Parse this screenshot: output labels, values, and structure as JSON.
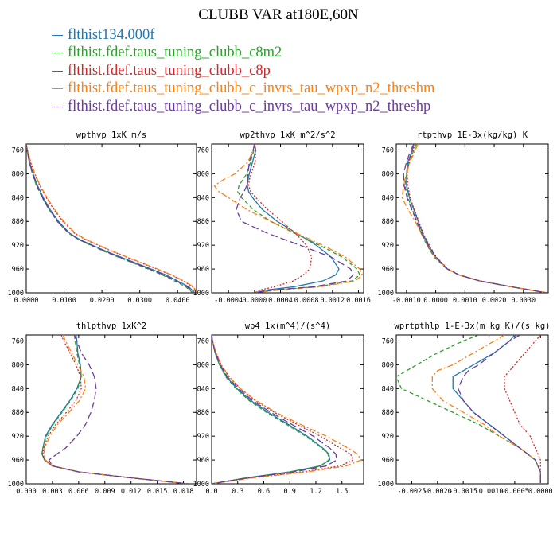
{
  "title": "CLUBB VAR at180E,60N",
  "legend": [
    {
      "label": "flthist134.000f",
      "color": "#1f77b4"
    },
    {
      "label": "flthist.fdef.taus_tuning_clubb_c8m2",
      "color": "#2ca02c"
    },
    {
      "label": "flthist.fdef.taus_tuning_clubb_c8p",
      "color": "#d62728"
    },
    {
      "label": "flthist.fdef.taus_tuning_clubb_c_invrs_tau_wpxp_n2_threshm",
      "color": "#ff7f0e"
    },
    {
      "label": "flthist.fdef.taus_tuning_clubb_c_invrs_tau_wpxp_n2_threshp",
      "color": "#6a3d9a"
    }
  ],
  "chart_data": [
    {
      "type": "line",
      "title": "wpthvp  1xK m/s",
      "xlim": [
        0.0,
        0.045
      ],
      "ylim": [
        1000,
        750
      ],
      "x_ticks": [
        "0.0000",
        "0.0100",
        "0.0200",
        "0.0300",
        "0.0400"
      ],
      "y_ticks": [
        "760",
        "800",
        "840",
        "880",
        "920",
        "960",
        "1000"
      ],
      "y": [
        750,
        760,
        780,
        800,
        820,
        840,
        860,
        880,
        900,
        910,
        920,
        930,
        940,
        950,
        960,
        970,
        980,
        990,
        1000
      ],
      "series": [
        {
          "color": "#1f77b4",
          "dash": "solid",
          "values": [
            0.0,
            0.0002,
            0.0009,
            0.0018,
            0.003,
            0.0045,
            0.0063,
            0.0085,
            0.0115,
            0.014,
            0.0175,
            0.021,
            0.025,
            0.029,
            0.033,
            0.037,
            0.04,
            0.043,
            0.0445
          ]
        },
        {
          "color": "#2ca02c",
          "dash": "dashed",
          "values": [
            0.0,
            0.0002,
            0.0008,
            0.0016,
            0.0027,
            0.0042,
            0.006,
            0.0082,
            0.0112,
            0.0137,
            0.017,
            0.0205,
            0.0243,
            0.0283,
            0.0322,
            0.036,
            0.0392,
            0.0422,
            0.044
          ]
        },
        {
          "color": "#d62728",
          "dash": "dotted",
          "values": [
            0.0,
            0.0003,
            0.0011,
            0.0022,
            0.0036,
            0.0053,
            0.0073,
            0.0097,
            0.0128,
            0.0155,
            0.019,
            0.0226,
            0.0265,
            0.0305,
            0.0345,
            0.0383,
            0.0415,
            0.044,
            0.0452
          ]
        },
        {
          "color": "#ff7f0e",
          "dash": "dashdot",
          "values": [
            0.0,
            0.0003,
            0.0012,
            0.0023,
            0.0037,
            0.0055,
            0.0075,
            0.0099,
            0.013,
            0.0157,
            0.0192,
            0.0228,
            0.0267,
            0.0307,
            0.0347,
            0.0385,
            0.0417,
            0.0442,
            0.0452
          ]
        },
        {
          "color": "#6a3d9a",
          "dash": "longdash",
          "values": [
            0.0,
            0.0002,
            0.0008,
            0.0017,
            0.0028,
            0.0043,
            0.0061,
            0.0083,
            0.0113,
            0.0138,
            0.0172,
            0.0207,
            0.0246,
            0.0286,
            0.0326,
            0.0364,
            0.0396,
            0.0426,
            0.0442
          ]
        }
      ]
    },
    {
      "type": "line",
      "title": "wp2thvp  1xK m^2/s^2",
      "xlim": [
        -0.00066,
        0.00168
      ],
      "ylim": [
        1000,
        750
      ],
      "x_ticks": [
        "-0.0004",
        "0.0000",
        "0.0004",
        "0.0008",
        "0.0012",
        "0.0016"
      ],
      "y_ticks": [
        "760",
        "800",
        "840",
        "880",
        "920",
        "960",
        "1000"
      ],
      "y": [
        750,
        760,
        780,
        800,
        810,
        820,
        830,
        840,
        860,
        880,
        900,
        920,
        940,
        960,
        970,
        980,
        990,
        995,
        1000
      ],
      "series": [
        {
          "color": "#1f77b4",
          "dash": "solid",
          "values": [
            0.0,
            2e-05,
            -3e-05,
            -8e-05,
            -0.0001,
            -0.00011,
            -9e-05,
            -3e-05,
            0.00012,
            0.00035,
            0.00065,
            0.00095,
            0.00118,
            0.0013,
            0.00125,
            0.00105,
            0.0006,
            0.0002,
            0.0
          ]
        },
        {
          "color": "#2ca02c",
          "dash": "dashed",
          "values": [
            0.0,
            -1e-05,
            -6e-05,
            -0.00012,
            -0.00018,
            -0.00024,
            -0.00026,
            -0.0002,
            -2e-05,
            0.00025,
            0.00062,
            0.001,
            0.00135,
            0.00158,
            0.00162,
            0.0015,
            0.00095,
            0.00035,
            0.0
          ]
        },
        {
          "color": "#d62728",
          "dash": "dotted",
          "values": [
            0.0,
            2e-05,
            1e-05,
            -5e-05,
            -8e-05,
            -9e-05,
            -6e-05,
            2e-05,
            0.0002,
            0.00042,
            0.00063,
            0.0008,
            0.00088,
            0.00085,
            0.00075,
            0.0006,
            0.0003,
            0.0001,
            0.0
          ]
        },
        {
          "color": "#ff7f0e",
          "dash": "dashdot",
          "values": [
            0.0,
            -2e-05,
            -0.0001,
            -0.0003,
            -0.00048,
            -0.00062,
            -0.00055,
            -0.0004,
            -0.00012,
            0.00025,
            0.00065,
            0.00105,
            0.0014,
            0.00162,
            0.00166,
            0.00155,
            0.001,
            0.0004,
            0.0
          ]
        },
        {
          "color": "#6a3d9a",
          "dash": "longdash",
          "values": [
            0.0,
            -2e-05,
            -8e-05,
            -0.0001,
            -0.0001,
            -0.00012,
            -0.00016,
            -0.00022,
            -0.00028,
            -0.0002,
            0.0002,
            0.0007,
            0.00118,
            0.00148,
            0.00152,
            0.00142,
            0.0009,
            0.0003,
            0.0
          ]
        }
      ]
    },
    {
      "type": "line",
      "title": "rtpthvp  1E-3x(kg/kg) K",
      "xlim": [
        -0.00135,
        0.00385
      ],
      "ylim": [
        1000,
        750
      ],
      "x_ticks": [
        "-0.0010",
        "0.0000",
        "0.0010",
        "0.0020",
        "0.0030"
      ],
      "y_ticks": [
        "760",
        "800",
        "840",
        "880",
        "920",
        "960",
        "1000"
      ],
      "y": [
        750,
        760,
        780,
        800,
        820,
        840,
        860,
        880,
        900,
        920,
        940,
        960,
        970,
        980,
        990,
        1000
      ],
      "series": [
        {
          "color": "#1f77b4",
          "dash": "solid",
          "values": [
            -0.00075,
            -0.0008,
            -0.00095,
            -0.001,
            -0.001,
            -0.0009,
            -0.00075,
            -0.0006,
            -0.00045,
            -0.00025,
            0.0,
            0.0004,
            0.0008,
            0.0015,
            0.0026,
            0.0038
          ]
        },
        {
          "color": "#2ca02c",
          "dash": "dashed",
          "values": [
            -0.00065,
            -0.00075,
            -0.0009,
            -0.001,
            -0.00105,
            -0.00095,
            -0.0008,
            -0.00065,
            -0.0005,
            -0.0003,
            -5e-05,
            0.00038,
            0.0008,
            0.0015,
            0.0026,
            0.0038
          ]
        },
        {
          "color": "#d62728",
          "dash": "dotted",
          "values": [
            -0.0007,
            -0.00078,
            -0.00092,
            -0.00098,
            -0.00095,
            -0.00088,
            -0.00073,
            -0.00058,
            -0.00043,
            -0.00022,
            2e-05,
            0.00042,
            0.00082,
            0.00152,
            0.00262,
            0.0038
          ]
        },
        {
          "color": "#ff7f0e",
          "dash": "dashdot",
          "values": [
            -0.0006,
            -0.0007,
            -0.00088,
            -0.001,
            -0.0011,
            -0.00115,
            -0.00095,
            -0.0007,
            -0.0005,
            -0.00028,
            -2e-05,
            0.0004,
            0.00082,
            0.00152,
            0.00262,
            0.0038
          ]
        },
        {
          "color": "#6a3d9a",
          "dash": "longdash",
          "values": [
            -0.00075,
            -0.00085,
            -0.001,
            -0.0011,
            -0.00108,
            -0.00098,
            -0.00082,
            -0.00065,
            -0.00048,
            -0.00026,
            0.0,
            0.0004,
            0.0008,
            0.0015,
            0.0026,
            0.0038
          ]
        }
      ]
    },
    {
      "type": "line",
      "title": "thlpthvp  1xK^2",
      "xlim": [
        0.0,
        0.0195
      ],
      "ylim": [
        1000,
        750
      ],
      "x_ticks": [
        "0.000",
        "0.003",
        "0.006",
        "0.009",
        "0.012",
        "0.015",
        "0.018"
      ],
      "y_ticks": [
        "760",
        "800",
        "840",
        "880",
        "920",
        "960",
        "1000"
      ],
      "y": [
        750,
        760,
        780,
        800,
        820,
        840,
        860,
        880,
        900,
        920,
        940,
        950,
        960,
        970,
        980,
        990,
        1000
      ],
      "series": [
        {
          "color": "#1f77b4",
          "dash": "solid",
          "values": [
            0.0057,
            0.0058,
            0.0059,
            0.0062,
            0.0063,
            0.0058,
            0.005,
            0.004,
            0.003,
            0.0022,
            0.0019,
            0.0018,
            0.0021,
            0.003,
            0.006,
            0.012,
            0.0185
          ]
        },
        {
          "color": "#2ca02c",
          "dash": "dashed",
          "values": [
            0.0055,
            0.0056,
            0.0058,
            0.0061,
            0.0063,
            0.0059,
            0.0051,
            0.0041,
            0.0031,
            0.0023,
            0.0019,
            0.0018,
            0.0021,
            0.003,
            0.006,
            0.012,
            0.0185
          ]
        },
        {
          "color": "#d62728",
          "dash": "dotted",
          "values": [
            0.004,
            0.0043,
            0.005,
            0.0057,
            0.0062,
            0.0063,
            0.0057,
            0.0046,
            0.0034,
            0.0025,
            0.002,
            0.0019,
            0.0021,
            0.003,
            0.006,
            0.012,
            0.0185
          ]
        },
        {
          "color": "#ff7f0e",
          "dash": "dashdot",
          "values": [
            0.0042,
            0.0045,
            0.0052,
            0.0059,
            0.0066,
            0.0068,
            0.0061,
            0.0049,
            0.0036,
            0.0027,
            0.0021,
            0.002,
            0.0022,
            0.0031,
            0.006,
            0.012,
            0.0185
          ]
        },
        {
          "color": "#6a3d9a",
          "dash": "longdash",
          "values": [
            0.0055,
            0.0058,
            0.0063,
            0.0072,
            0.0078,
            0.008,
            0.0078,
            0.0074,
            0.0068,
            0.0058,
            0.0045,
            0.0035,
            0.0026,
            0.003,
            0.006,
            0.012,
            0.0185
          ]
        }
      ]
    },
    {
      "type": "line",
      "title": "wp4  1x(m^4)/(s^4)",
      "xlim": [
        0.0,
        1.75
      ],
      "ylim": [
        1000,
        750
      ],
      "x_ticks": [
        "0.0",
        "0.3",
        "0.6",
        "0.9",
        "1.2",
        "1.5"
      ],
      "y_ticks": [
        "760",
        "800",
        "840",
        "880",
        "920",
        "960",
        "1000"
      ],
      "y": [
        750,
        760,
        780,
        800,
        820,
        840,
        860,
        880,
        900,
        920,
        940,
        950,
        960,
        970,
        980,
        990,
        1000
      ],
      "series": [
        {
          "color": "#1f77b4",
          "dash": "solid",
          "values": [
            0.0,
            0.01,
            0.04,
            0.09,
            0.17,
            0.29,
            0.45,
            0.65,
            0.88,
            1.1,
            1.28,
            1.35,
            1.36,
            1.25,
            0.9,
            0.4,
            0.0
          ]
        },
        {
          "color": "#2ca02c",
          "dash": "dashed",
          "values": [
            0.0,
            0.01,
            0.04,
            0.09,
            0.16,
            0.28,
            0.43,
            0.63,
            0.86,
            1.08,
            1.27,
            1.34,
            1.35,
            1.25,
            0.9,
            0.4,
            0.0
          ]
        },
        {
          "color": "#d62728",
          "dash": "dotted",
          "values": [
            0.0,
            0.01,
            0.05,
            0.11,
            0.2,
            0.33,
            0.5,
            0.72,
            0.98,
            1.25,
            1.48,
            1.6,
            1.63,
            1.48,
            1.05,
            0.45,
            0.0
          ]
        },
        {
          "color": "#ff7f0e",
          "dash": "dashdot",
          "values": [
            0.0,
            0.01,
            0.05,
            0.11,
            0.2,
            0.33,
            0.51,
            0.74,
            1.02,
            1.32,
            1.57,
            1.68,
            1.72,
            1.55,
            1.1,
            0.48,
            0.0
          ]
        },
        {
          "color": "#6a3d9a",
          "dash": "longdash",
          "values": [
            0.0,
            0.01,
            0.04,
            0.1,
            0.18,
            0.31,
            0.47,
            0.68,
            0.92,
            1.17,
            1.36,
            1.43,
            1.44,
            1.32,
            0.95,
            0.42,
            0.0
          ]
        }
      ]
    },
    {
      "type": "line",
      "title": "wprtpthlp  1-E-3x(m kg K)/(s kg)",
      "xlim": [
        -0.0028,
        0.00015
      ],
      "ylim": [
        1000,
        750
      ],
      "x_ticks": [
        "-0.0025",
        "-0.0020",
        "-0.0015",
        "-0.0010",
        "-0.0005",
        "0.0000"
      ],
      "y_ticks": [
        "760",
        "800",
        "840",
        "880",
        "920",
        "960",
        "1000"
      ],
      "y": [
        750,
        760,
        780,
        800,
        810,
        820,
        840,
        860,
        880,
        900,
        920,
        940,
        960,
        980,
        990,
        1000
      ],
      "series": [
        {
          "color": "#1f77b4",
          "dash": "solid",
          "values": [
            -0.0005,
            -0.0006,
            -0.0009,
            -0.0013,
            -0.0015,
            -0.0017,
            -0.0017,
            -0.0015,
            -0.0013,
            -0.001,
            -0.0007,
            -0.0004,
            -0.0001,
            0.0,
            0.0,
            0.0
          ]
        },
        {
          "color": "#2ca02c",
          "dash": "dashed",
          "values": [
            -0.0012,
            -0.0015,
            -0.002,
            -0.0024,
            -0.0026,
            -0.0028,
            -0.0027,
            -0.0022,
            -0.0017,
            -0.0012,
            -0.0008,
            -0.0004,
            -0.0001,
            0.0,
            0.0,
            0.0
          ]
        },
        {
          "color": "#d62728",
          "dash": "dotted",
          "values": [
            0.0,
            -0.0001,
            -0.0003,
            -0.0005,
            -0.0006,
            -0.0007,
            -0.0007,
            -0.0006,
            -0.0005,
            -0.0004,
            -0.0002,
            -0.0001,
            0.0,
            0.0,
            0.0,
            0.0
          ]
        },
        {
          "color": "#ff7f0e",
          "dash": "dashdot",
          "values": [
            -0.0007,
            -0.0009,
            -0.0013,
            -0.0017,
            -0.002,
            -0.0021,
            -0.0021,
            -0.0019,
            -0.0015,
            -0.0011,
            -0.0008,
            -0.0004,
            -0.0001,
            0.0,
            0.0,
            0.0
          ]
        },
        {
          "color": "#6a3d9a",
          "dash": "longdash",
          "values": [
            -0.0004,
            -0.0006,
            -0.0009,
            -0.0012,
            -0.0014,
            -0.0015,
            -0.0016,
            -0.0015,
            -0.0013,
            -0.001,
            -0.0007,
            -0.0004,
            -0.0001,
            0.0,
            0.0,
            0.0
          ]
        }
      ]
    }
  ]
}
